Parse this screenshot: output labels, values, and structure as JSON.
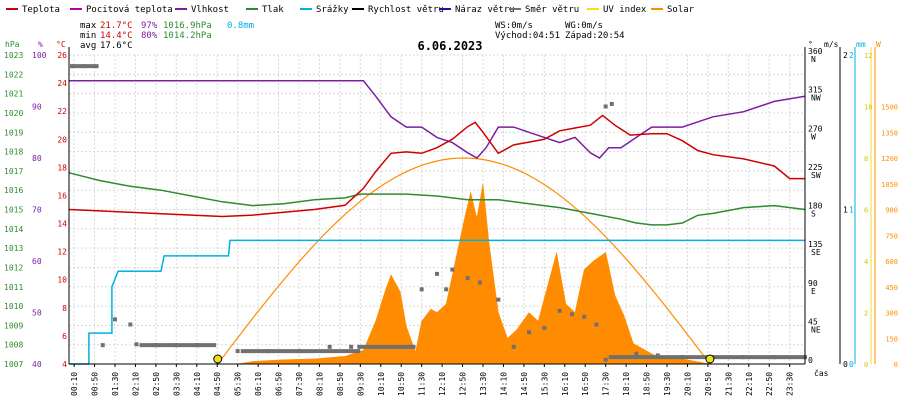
{
  "chart_data": {
    "type": "line",
    "title": "6.06.2023",
    "legend": [
      {
        "name": "Teplota",
        "color": "#d00000"
      },
      {
        "name": "Pocitová teplota",
        "color": "#b000b0"
      },
      {
        "name": "Vlhkost",
        "color": "#7a1fa2"
      },
      {
        "name": "Tlak",
        "color": "#2e8b2e"
      },
      {
        "name": "Srážky",
        "color": "#00b0e0"
      },
      {
        "name": "Rychlost větru",
        "color": "#000000"
      },
      {
        "name": "Náraz větru",
        "color": "#2010a0"
      },
      {
        "name": "Směr větru",
        "color": "#707070"
      },
      {
        "name": "UV index",
        "color": "#f0e020"
      },
      {
        "name": "Solar",
        "color": "#ff8c00"
      }
    ],
    "stats": {
      "max": {
        "label": "max",
        "temp": "21.7°C",
        "hum": "97%",
        "press": "1016.9hPa",
        "rain": "0.8mm"
      },
      "min": {
        "label": "min",
        "temp": "14.4°C",
        "hum": "80%",
        "press": "1014.2hPa"
      },
      "avg": {
        "label": "avg",
        "temp": "17.6°C"
      }
    },
    "info": {
      "ws": "WS:0m/s",
      "wg": "WG:0m/s",
      "sunrise": "Východ:04:51",
      "sunset": "Západ:20:54"
    },
    "units": {
      "hpa": "hPa",
      "pct": "%",
      "degc": "°C",
      "deg": "°",
      "ms": "m/s",
      "mm": "mm",
      "w": "W",
      "time": "čas"
    },
    "axes": {
      "pressure": {
        "ylim": [
          1007,
          1023
        ],
        "ticks": [
          1007,
          1008,
          1009,
          1010,
          1011,
          1012,
          1013,
          1014,
          1015,
          1016,
          1017,
          1018,
          1019,
          1020,
          1021,
          1022,
          1023
        ]
      },
      "humidity": {
        "ylim": [
          40,
          100
        ],
        "ticks": [
          40,
          50,
          60,
          70,
          80,
          90,
          100
        ]
      },
      "temperature": {
        "ylim": [
          4,
          26
        ],
        "ticks": [
          4,
          6,
          8,
          10,
          12,
          14,
          16,
          18,
          20,
          22,
          24,
          26
        ]
      },
      "direction": {
        "ylim": [
          0,
          360
        ],
        "ticks": [
          {
            "v": 0,
            "l": "0",
            "d": ""
          },
          {
            "v": 45,
            "l": "45",
            "d": "NE"
          },
          {
            "v": 90,
            "l": "90",
            "d": "E"
          },
          {
            "v": 135,
            "l": "135",
            "d": "SE"
          },
          {
            "v": 180,
            "l": "180",
            "d": "S"
          },
          {
            "v": 225,
            "l": "225",
            "d": "SW"
          },
          {
            "v": 270,
            "l": "270",
            "d": "W"
          },
          {
            "v": 315,
            "l": "315",
            "d": "NW"
          },
          {
            "v": 360,
            "l": "360",
            "d": "N"
          }
        ]
      },
      "wind": {
        "ylim": [
          0,
          2
        ],
        "ticks": [
          0,
          1,
          2
        ]
      },
      "rain": {
        "ylim": [
          0,
          2
        ],
        "ticks": [
          0,
          1,
          2
        ]
      },
      "uv": {
        "ylim": [
          0,
          12
        ],
        "ticks": [
          0,
          2,
          4,
          6,
          8,
          10,
          12
        ]
      },
      "solar": {
        "ylim": [
          0,
          1800
        ],
        "ticks": [
          0,
          150,
          300,
          450,
          600,
          750,
          900,
          1050,
          1200,
          1350,
          1500
        ]
      }
    },
    "x_ticks": [
      "00:10",
      "00:50",
      "01:30",
      "02:10",
      "02:50",
      "03:30",
      "04:10",
      "04:50",
      "05:30",
      "06:10",
      "06:50",
      "07:30",
      "08:10",
      "08:50",
      "09:30",
      "10:10",
      "10:50",
      "11:30",
      "12:10",
      "12:50",
      "13:30",
      "14:10",
      "14:50",
      "15:30",
      "16:10",
      "16:50",
      "17:30",
      "18:10",
      "18:50",
      "19:30",
      "20:10",
      "20:50",
      "21:30",
      "22:10",
      "22:50",
      "23:30"
    ],
    "xlim": [
      0,
      24
    ],
    "grid": true,
    "series": [
      {
        "name": "Teplota",
        "color": "#d00000",
        "points": [
          [
            0,
            15.0
          ],
          [
            1,
            14.9
          ],
          [
            2,
            14.8
          ],
          [
            3,
            14.7
          ],
          [
            4,
            14.6
          ],
          [
            5,
            14.5
          ],
          [
            6,
            14.6
          ],
          [
            7,
            14.8
          ],
          [
            8,
            15.0
          ],
          [
            9,
            15.3
          ],
          [
            9.6,
            16.5
          ],
          [
            10,
            17.7
          ],
          [
            10.5,
            19.0
          ],
          [
            11,
            19.1
          ],
          [
            11.5,
            19.0
          ],
          [
            12,
            19.4
          ],
          [
            12.5,
            20.0
          ],
          [
            13,
            20.9
          ],
          [
            13.25,
            21.2
          ],
          [
            13.5,
            20.5
          ],
          [
            14,
            19.0
          ],
          [
            14.5,
            19.6
          ],
          [
            15,
            19.8
          ],
          [
            15.5,
            20.0
          ],
          [
            16,
            20.6
          ],
          [
            16.5,
            20.8
          ],
          [
            17,
            21.0
          ],
          [
            17.4,
            21.7
          ],
          [
            17.8,
            21.0
          ],
          [
            18.3,
            20.3
          ],
          [
            19,
            20.4
          ],
          [
            19.5,
            20.4
          ],
          [
            20,
            19.9
          ],
          [
            20.5,
            19.2
          ],
          [
            21,
            18.9
          ],
          [
            22,
            18.6
          ],
          [
            23,
            18.1
          ],
          [
            23.5,
            17.2
          ],
          [
            24,
            17.2
          ]
        ]
      },
      {
        "name": "Vlhkost",
        "color": "#7a1fa2",
        "points": [
          [
            0,
            95
          ],
          [
            1,
            95
          ],
          [
            2,
            95
          ],
          [
            4,
            95
          ],
          [
            6,
            95
          ],
          [
            7,
            95
          ],
          [
            8,
            95
          ],
          [
            9,
            95
          ],
          [
            9.6,
            95
          ],
          [
            10,
            92
          ],
          [
            10.5,
            88
          ],
          [
            11,
            86
          ],
          [
            11.5,
            86
          ],
          [
            12,
            84
          ],
          [
            12.5,
            83
          ],
          [
            13,
            81
          ],
          [
            13.3,
            80
          ],
          [
            13.6,
            82
          ],
          [
            14,
            86
          ],
          [
            14.5,
            86
          ],
          [
            15,
            85
          ],
          [
            15.5,
            84
          ],
          [
            16,
            83
          ],
          [
            16.5,
            84
          ],
          [
            17,
            81
          ],
          [
            17.3,
            80
          ],
          [
            17.6,
            82
          ],
          [
            18,
            82
          ],
          [
            18.5,
            84
          ],
          [
            19,
            86
          ],
          [
            20,
            86
          ],
          [
            20.5,
            87
          ],
          [
            21,
            88
          ],
          [
            22,
            89
          ],
          [
            23,
            91
          ],
          [
            24,
            92
          ]
        ]
      },
      {
        "name": "Tlak",
        "color": "#2e8b2e",
        "points": [
          [
            0,
            1016.9
          ],
          [
            1,
            1016.5
          ],
          [
            2,
            1016.2
          ],
          [
            3,
            1016.0
          ],
          [
            4,
            1015.7
          ],
          [
            5,
            1015.4
          ],
          [
            6,
            1015.2
          ],
          [
            7,
            1015.3
          ],
          [
            8,
            1015.5
          ],
          [
            9,
            1015.6
          ],
          [
            9.5,
            1015.8
          ],
          [
            10,
            1015.8
          ],
          [
            11,
            1015.8
          ],
          [
            12,
            1015.7
          ],
          [
            13,
            1015.5
          ],
          [
            14,
            1015.5
          ],
          [
            15,
            1015.3
          ],
          [
            16,
            1015.1
          ],
          [
            17,
            1014.8
          ],
          [
            18,
            1014.5
          ],
          [
            18.5,
            1014.3
          ],
          [
            19,
            1014.2
          ],
          [
            19.5,
            1014.2
          ],
          [
            20,
            1014.3
          ],
          [
            20.5,
            1014.7
          ],
          [
            21,
            1014.8
          ],
          [
            22,
            1015.1
          ],
          [
            23,
            1015.2
          ],
          [
            24,
            1015.0
          ]
        ]
      },
      {
        "name": "Srážky",
        "color": "#00b0e0",
        "points": [
          [
            0,
            0
          ],
          [
            0.65,
            0
          ],
          [
            0.65,
            0.2
          ],
          [
            1.4,
            0.2
          ],
          [
            1.4,
            0.5
          ],
          [
            1.6,
            0.6
          ],
          [
            3.0,
            0.6
          ],
          [
            3.1,
            0.7
          ],
          [
            5.2,
            0.7
          ],
          [
            5.25,
            0.8
          ],
          [
            24,
            0.8
          ]
        ]
      },
      {
        "name": "Solar",
        "color": "#ff8c00",
        "points": [
          [
            0,
            0
          ],
          [
            5.5,
            0
          ],
          [
            6,
            15
          ],
          [
            7,
            25
          ],
          [
            8,
            30
          ],
          [
            9,
            45
          ],
          [
            9.6,
            80
          ],
          [
            10,
            250
          ],
          [
            10.3,
            420
          ],
          [
            10.5,
            520
          ],
          [
            10.8,
            420
          ],
          [
            11,
            220
          ],
          [
            11.3,
            70
          ],
          [
            11.5,
            250
          ],
          [
            11.8,
            320
          ],
          [
            12,
            300
          ],
          [
            12.3,
            350
          ],
          [
            12.6,
            600
          ],
          [
            12.9,
            850
          ],
          [
            13.1,
            1000
          ],
          [
            13.3,
            850
          ],
          [
            13.5,
            1050
          ],
          [
            13.7,
            700
          ],
          [
            14,
            300
          ],
          [
            14.3,
            150
          ],
          [
            14.6,
            200
          ],
          [
            15,
            300
          ],
          [
            15.3,
            250
          ],
          [
            15.6,
            450
          ],
          [
            15.9,
            650
          ],
          [
            16.2,
            350
          ],
          [
            16.5,
            300
          ],
          [
            16.8,
            550
          ],
          [
            17.1,
            600
          ],
          [
            17.5,
            650
          ],
          [
            17.8,
            400
          ],
          [
            18.1,
            280
          ],
          [
            18.4,
            120
          ],
          [
            18.8,
            80
          ],
          [
            19.2,
            40
          ],
          [
            20,
            30
          ],
          [
            20.9,
            0
          ],
          [
            24,
            0
          ]
        ]
      }
    ],
    "solar_theoretical": {
      "name": "Solar",
      "color": "#ff8c00",
      "peak": 1200,
      "start": 4.85,
      "end": 20.9
    },
    "uv_points": [
      [
        4.85,
        0
      ],
      [
        20.9,
        0
      ]
    ],
    "direction_points": [
      [
        0.1,
        347
      ],
      [
        0.5,
        347
      ],
      [
        0.9,
        347
      ],
      [
        1.1,
        22
      ],
      [
        1.5,
        52
      ],
      [
        2.0,
        46
      ],
      [
        2.2,
        23
      ],
      [
        2.8,
        22
      ],
      [
        3.5,
        22
      ],
      [
        4.2,
        22
      ],
      [
        5.5,
        15
      ],
      [
        6.5,
        15
      ],
      [
        7.5,
        15
      ],
      [
        8.5,
        20
      ],
      [
        9.2,
        20
      ],
      [
        10.0,
        20
      ],
      [
        11.0,
        20
      ],
      [
        11.5,
        87
      ],
      [
        12.0,
        105
      ],
      [
        12.3,
        87
      ],
      [
        12.5,
        110
      ],
      [
        13.0,
        100
      ],
      [
        13.4,
        95
      ],
      [
        14.0,
        75
      ],
      [
        14.5,
        20
      ],
      [
        15.0,
        37
      ],
      [
        15.5,
        42
      ],
      [
        16.0,
        62
      ],
      [
        16.4,
        58
      ],
      [
        16.8,
        55
      ],
      [
        17.2,
        46
      ],
      [
        17.5,
        5
      ],
      [
        18.5,
        12
      ],
      [
        19.2,
        10
      ],
      [
        20.0,
        8
      ],
      [
        21.0,
        8
      ],
      [
        22.0,
        8
      ],
      [
        23.0,
        8
      ],
      [
        24.0,
        8
      ],
      [
        17.5,
        300
      ],
      [
        17.7,
        303
      ]
    ]
  }
}
